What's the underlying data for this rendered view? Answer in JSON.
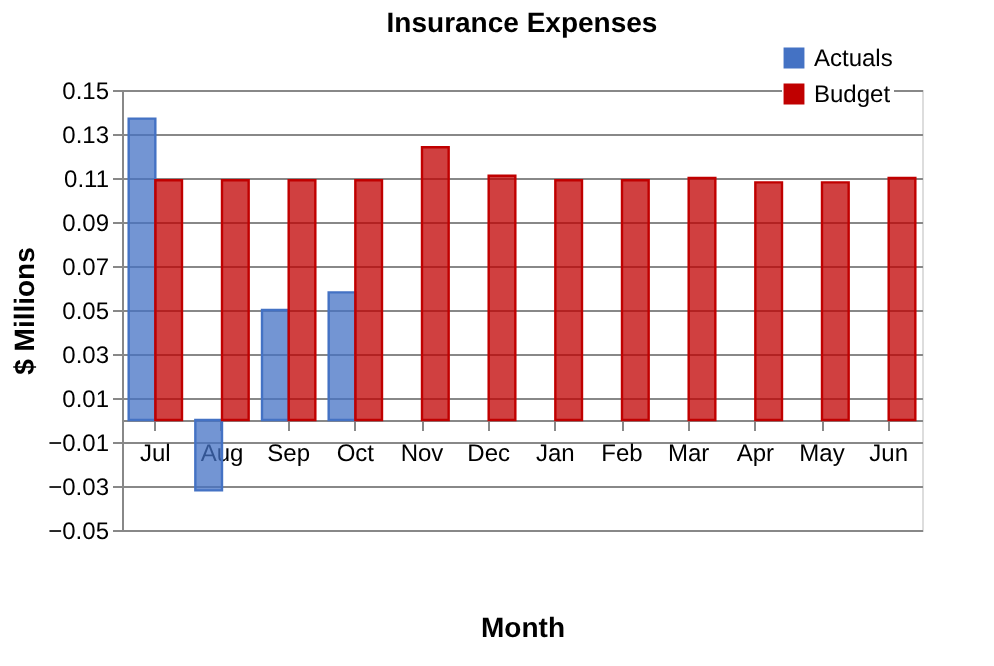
{
  "chart_data": {
    "type": "bar",
    "title": "Insurance Expenses",
    "xlabel": "Month",
    "ylabel": "$ Millions",
    "categories": [
      "Jul",
      "Aug",
      "Sep",
      "Oct",
      "Nov",
      "Dec",
      "Jan",
      "Feb",
      "Mar",
      "Apr",
      "May",
      "Jun"
    ],
    "series": [
      {
        "name": "Actuals",
        "color": "#4472c4",
        "values": [
          0.137,
          -0.032,
          0.05,
          0.058,
          null,
          null,
          null,
          null,
          null,
          null,
          null,
          null
        ]
      },
      {
        "name": "Budget",
        "color": "#c00000",
        "values": [
          0.109,
          0.109,
          0.109,
          0.109,
          0.124,
          0.111,
          0.109,
          0.109,
          0.11,
          0.108,
          0.108,
          0.11
        ]
      }
    ],
    "ylim": [
      -0.05,
      0.15
    ],
    "yticks": [
      -0.05,
      -0.03,
      -0.01,
      0.01,
      0.03,
      0.05,
      0.07,
      0.09,
      0.11,
      0.13,
      0.15
    ],
    "grid": "y",
    "legend": "top right"
  }
}
